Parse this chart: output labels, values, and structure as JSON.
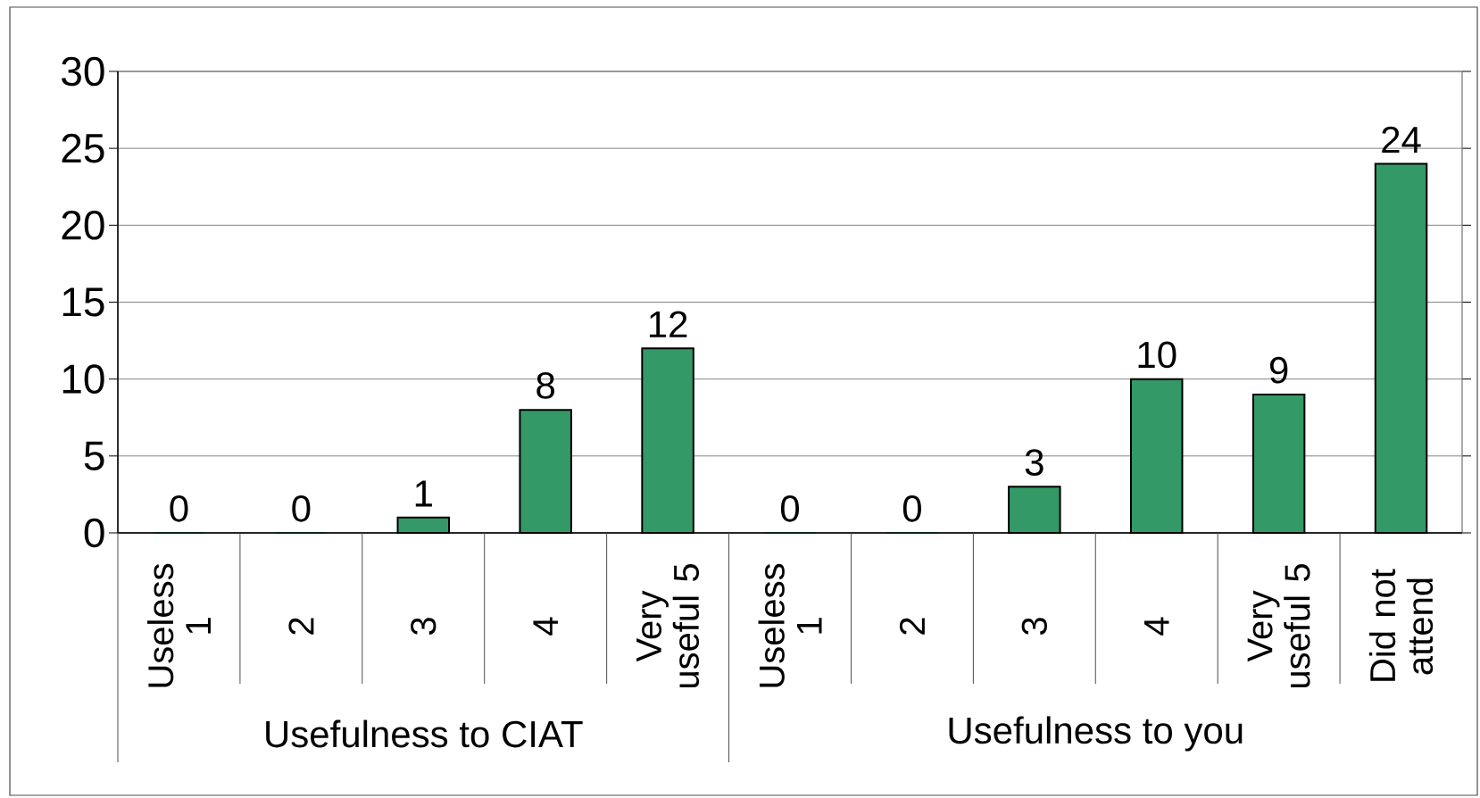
{
  "chart_data": {
    "type": "bar",
    "categories": [
      "Useless 1",
      "2",
      "3",
      "4",
      "Very useful 5",
      "Useless 1",
      "2",
      "3",
      "4",
      "Very useful 5",
      "Did not attend"
    ],
    "values": [
      0,
      0,
      1,
      8,
      12,
      0,
      0,
      3,
      10,
      9,
      24
    ],
    "color": "#339966",
    "ylim": [
      0,
      30
    ],
    "yticks": [
      0,
      5,
      10,
      15,
      20,
      25,
      30
    ],
    "grid": "y",
    "data_labels": true,
    "annotations": [
      "Usefulness to CIAT",
      "Usefulness to you"
    ]
  }
}
